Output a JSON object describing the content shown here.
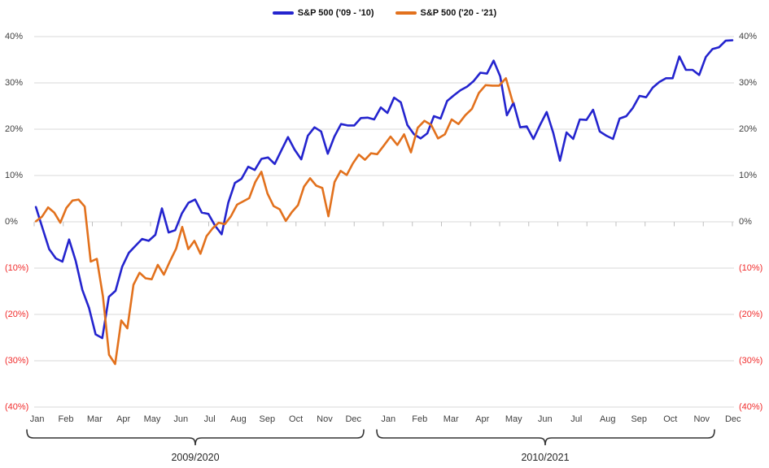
{
  "legend": {
    "items": [
      {
        "label": "S&P 500 ('09 - '10)",
        "color": "#2424CE"
      },
      {
        "label": "S&P 500 ('20 - '21)",
        "color": "#E2711D"
      }
    ]
  },
  "chart_data": {
    "type": "line",
    "title": "",
    "grid": true,
    "legend_position": "top-center",
    "y_axis": {
      "min": -40,
      "max": 40,
      "step": 10,
      "unit": "%",
      "tick_labels": [
        "40%",
        "30%",
        "20%",
        "10%",
        "0%",
        "(10%)",
        "(20%)",
        "(30%)",
        "(40%)"
      ],
      "tick_values": [
        40,
        30,
        20,
        10,
        0,
        -10,
        -20,
        -30,
        -40
      ],
      "positive_label_color": "#404040",
      "negative_label_color": "#F02B2B",
      "mirrored_right_axis": true,
      "gridline_color": "#D9D9D9"
    },
    "x_axis": {
      "months": [
        "Jan",
        "Feb",
        "Mar",
        "Apr",
        "May",
        "Jun",
        "Jul",
        "Aug",
        "Sep",
        "Oct",
        "Nov",
        "Dec"
      ],
      "months_repeat": 2,
      "year_groups": [
        "2009/2020",
        "2010/2021"
      ],
      "axis_crosses_at": 0,
      "tick_color": "#BFBFBF"
    },
    "series": [
      {
        "name": "S&P 500 ('09 - '10)",
        "color": "#2424CE",
        "unit": "cumulative % change",
        "segments": [
          {
            "t_start": 0.06,
            "t_end": 24,
            "values": [
              3.2,
              -1.4,
              -5.9,
              -7.9,
              -8.6,
              -3.8,
              -8.5,
              -14.7,
              -18.6,
              -24.3,
              -25.1,
              -16.2,
              -14.9,
              -9.7,
              -6.7,
              -5.2,
              -3.7,
              -4.1,
              -2.8,
              2.9,
              -2.3,
              -1.8,
              1.8,
              4.1,
              4.8,
              2.0,
              1.7,
              -0.8,
              -2.7,
              4.1,
              8.4,
              9.3,
              11.9,
              11.2,
              13.6,
              13.9,
              12.5,
              15.4,
              18.3,
              15.6,
              13.5,
              18.6,
              20.4,
              19.5,
              14.7,
              18.4,
              21.1,
              20.8,
              20.8,
              22.4,
              22.5,
              22.1,
              24.7,
              23.5,
              26.8,
              25.8,
              20.9,
              18.9,
              18.0,
              19.1,
              22.8,
              22.3,
              26.1,
              27.3,
              28.4,
              29.2,
              30.4,
              32.2,
              32.0,
              34.8,
              31.4,
              23.0,
              25.7,
              20.4,
              20.6,
              17.9,
              20.9,
              23.7,
              19.2,
              13.2,
              19.3,
              17.9,
              22.1,
              22.0,
              24.2,
              19.5,
              18.6,
              17.9,
              22.3,
              22.8,
              24.6,
              27.2,
              26.9,
              29.0,
              30.2,
              31.0,
              31.0,
              35.7,
              32.8,
              32.8,
              31.7,
              35.6,
              37.3,
              37.7,
              39.1,
              39.2
            ]
          }
        ]
      },
      {
        "name": "S&P 500 ('20 - '21)",
        "color": "#E2711D",
        "unit": "cumulative % change",
        "segments": [
          {
            "t_start": 0.06,
            "t_end": 12,
            "values": [
              0.1,
              1.1,
              3.1,
              2.0,
              -0.2,
              3.0,
              4.6,
              4.8,
              3.3,
              -8.6,
              -8.0,
              -16.1,
              -28.7,
              -30.7,
              -21.3,
              -23.0,
              -13.6,
              -11.0,
              -12.2,
              -12.4,
              -9.3,
              -11.4,
              -8.5,
              -5.8,
              -1.1,
              -5.9,
              -4.1,
              -6.9,
              -3.1,
              -1.4,
              -0.2,
              -0.5,
              1.2,
              3.7,
              4.4,
              5.1,
              8.6,
              10.8,
              6.1,
              3.4,
              2.7,
              0.2,
              2.1,
              3.6,
              7.6,
              9.4,
              7.8,
              7.3,
              1.2,
              8.6,
              11.0,
              10.1,
              12.6,
              14.5,
              13.4,
              14.8,
              14.6,
              16.3
            ]
          },
          {
            "t_start": 12.25,
            "t_end": 16.45,
            "values": [
              18.4,
              16.6,
              18.9,
              15.0,
              20.3,
              21.8,
              20.9,
              18.0,
              18.9,
              22.1,
              21.1,
              23.0,
              24.4,
              27.8,
              29.5,
              29.4,
              29.4,
              31.0,
              25.8
            ]
          }
        ]
      }
    ]
  }
}
